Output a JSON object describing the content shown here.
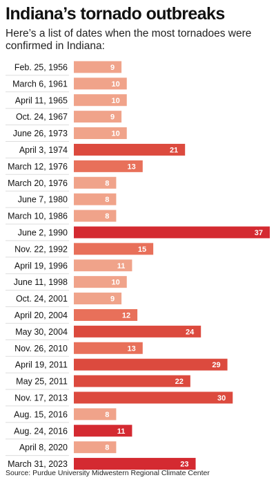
{
  "colors": {
    "low": "#f0a38a",
    "mid": "#e8705a",
    "high": "#dc4a3e",
    "max": "#d42a31",
    "divider": "#dddddd"
  },
  "chart_data": {
    "type": "bar",
    "orientation": "horizontal",
    "title": "Indiana’s tornado outbreaks",
    "subtitle": "Here’s a list of dates when the most tornadoes were confirmed in Indiana:",
    "source": "Source: Purdue University Midwestern Regional Climate Center",
    "categories": [
      "Feb. 25, 1956",
      "March 6, 1961",
      "April 11, 1965",
      "Oct. 24, 1967",
      "June 26, 1973",
      "April 3, 1974",
      "March 12, 1976",
      "March 20, 1976",
      "June 7, 1980",
      "March 10, 1986",
      "June 2, 1990",
      "Nov. 22, 1992",
      "April 19, 1996",
      "June 11, 1998",
      "Oct. 24, 2001",
      "April 20, 2004",
      "May 30, 2004",
      "Nov. 26, 2010",
      "April 19, 2011",
      "May 25, 2011",
      "Nov. 17, 2013",
      "Aug. 15, 2016",
      "Aug. 24, 2016",
      "April 8, 2020",
      "March 31, 2023"
    ],
    "values": [
      9,
      10,
      10,
      9,
      10,
      21,
      13,
      8,
      8,
      8,
      37,
      15,
      11,
      10,
      9,
      12,
      24,
      13,
      29,
      22,
      30,
      8,
      11,
      8,
      23
    ],
    "highlighted": [
      "June 2, 1990",
      "Aug. 24, 2016",
      "March 31, 2023"
    ],
    "xlim": [
      0,
      37
    ],
    "grid": false,
    "data_labels": true
  }
}
